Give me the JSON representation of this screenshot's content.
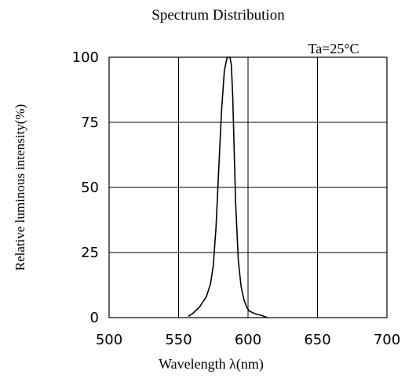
{
  "chart_data": {
    "type": "line",
    "title": "Spectrum Distribution",
    "annotation": "Ta=25°C",
    "xlabel": "Wavelength λ(nm)",
    "ylabel": "Relative luminous intensity(%)",
    "xlim": [
      500,
      700
    ],
    "ylim": [
      0,
      100
    ],
    "x_ticks": [
      "500",
      "550",
      "600",
      "650",
      "700"
    ],
    "y_ticks": [
      "0",
      "25",
      "50",
      "75",
      "100"
    ],
    "grid": true,
    "line_color": "#000000",
    "series": [
      {
        "x": [
          557,
          560,
          565,
          570,
          573,
          575,
          577,
          579,
          581,
          583,
          585,
          586,
          587,
          588,
          589,
          590,
          591,
          593,
          595,
          597,
          599,
          601,
          605,
          610,
          614
        ],
        "y": [
          0.5,
          1.5,
          4,
          8,
          13,
          20,
          35,
          58,
          80,
          95,
          100,
          100,
          100,
          97,
          85,
          65,
          45,
          22,
          12,
          7,
          4,
          2.5,
          1.5,
          0.8,
          0
        ]
      }
    ]
  }
}
